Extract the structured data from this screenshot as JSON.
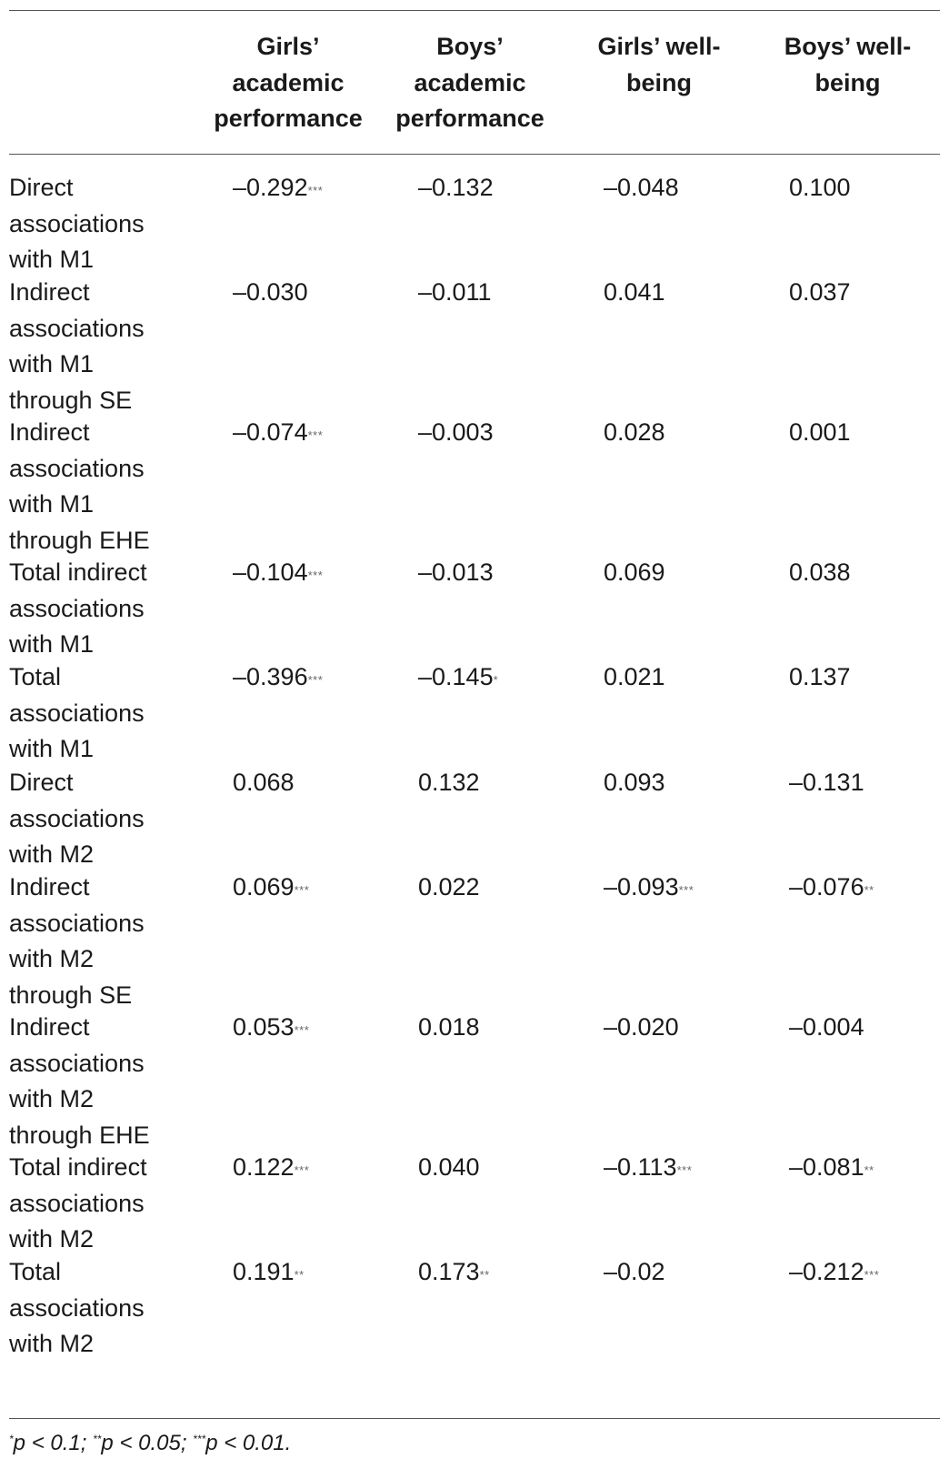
{
  "table": {
    "headers": [
      "Girls’ academic performance",
      "Boys’ academic performance",
      "Girls’ well-being",
      "Boys’ well-being"
    ],
    "rows": [
      {
        "label": "Direct associations with M1",
        "cells": [
          {
            "v": "–0.292",
            "s": "***"
          },
          {
            "v": "–0.132",
            "s": ""
          },
          {
            "v": "–0.048",
            "s": ""
          },
          {
            "v": "0.100",
            "s": ""
          }
        ]
      },
      {
        "label": "Indirect associations with M1 through SE",
        "cells": [
          {
            "v": "–0.030",
            "s": ""
          },
          {
            "v": "–0.011",
            "s": ""
          },
          {
            "v": "0.041",
            "s": ""
          },
          {
            "v": "0.037",
            "s": ""
          }
        ]
      },
      {
        "label": "Indirect associations with M1 through EHE",
        "cells": [
          {
            "v": "–0.074",
            "s": "***"
          },
          {
            "v": "–0.003",
            "s": ""
          },
          {
            "v": "0.028",
            "s": ""
          },
          {
            "v": "0.001",
            "s": ""
          }
        ]
      },
      {
        "label": "Total indirect associations with M1",
        "cells": [
          {
            "v": "–0.104",
            "s": "***"
          },
          {
            "v": "–0.013",
            "s": ""
          },
          {
            "v": "0.069",
            "s": ""
          },
          {
            "v": "0.038",
            "s": ""
          }
        ]
      },
      {
        "label": "Total associations with M1",
        "cells": [
          {
            "v": "–0.396",
            "s": "***"
          },
          {
            "v": "–0.145",
            "s": "*"
          },
          {
            "v": "0.021",
            "s": ""
          },
          {
            "v": "0.137",
            "s": ""
          }
        ]
      },
      {
        "label": "Direct associations with M2",
        "cells": [
          {
            "v": "0.068",
            "s": ""
          },
          {
            "v": "0.132",
            "s": ""
          },
          {
            "v": "0.093",
            "s": ""
          },
          {
            "v": "–0.131",
            "s": ""
          }
        ]
      },
      {
        "label": "Indirect associations with M2 through SE",
        "cells": [
          {
            "v": "0.069",
            "s": "***"
          },
          {
            "v": "0.022",
            "s": ""
          },
          {
            "v": "–0.093",
            "s": "***"
          },
          {
            "v": "–0.076",
            "s": "**"
          }
        ]
      },
      {
        "label": "Indirect associations with M2 through EHE",
        "cells": [
          {
            "v": "0.053",
            "s": "***"
          },
          {
            "v": "0.018",
            "s": ""
          },
          {
            "v": "–0.020",
            "s": ""
          },
          {
            "v": "–0.004",
            "s": ""
          }
        ]
      },
      {
        "label": "Total indirect associations with M2",
        "cells": [
          {
            "v": "0.122",
            "s": "***"
          },
          {
            "v": "0.040",
            "s": ""
          },
          {
            "v": "–0.113",
            "s": "***"
          },
          {
            "v": "–0.081",
            "s": "**"
          }
        ]
      },
      {
        "label": "Total associations with M2",
        "cells": [
          {
            "v": "0.191",
            "s": "**"
          },
          {
            "v": "0.173",
            "s": "**"
          },
          {
            "v": "–0.02",
            "s": ""
          },
          {
            "v": "–0.212",
            "s": "***"
          }
        ]
      }
    ]
  },
  "footnote": {
    "parts": [
      {
        "sup": "*",
        "text": "p < 0.1; "
      },
      {
        "sup": "**",
        "text": "p < 0.05; "
      },
      {
        "sup": "***",
        "text": "p < 0.01."
      }
    ]
  }
}
